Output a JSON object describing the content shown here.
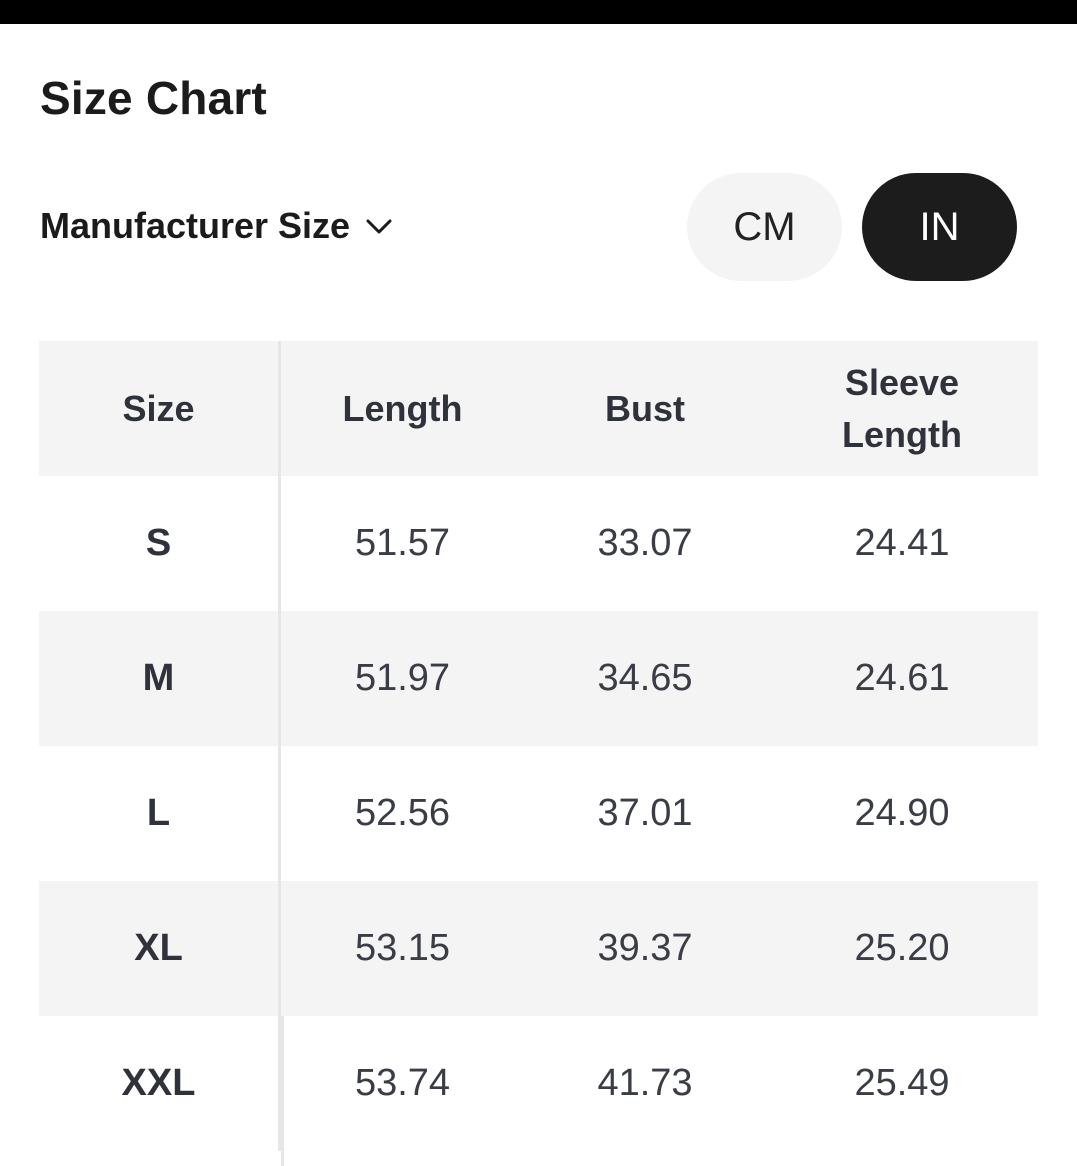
{
  "title": "Size Chart",
  "size_selector": {
    "label": "Manufacturer Size",
    "icon": "chevron-down-icon"
  },
  "units": {
    "cm": "CM",
    "in": "IN",
    "selected": "IN"
  },
  "colors": {
    "selected_bg": "#1c1c1c",
    "unselected_bg": "#f4f4f4",
    "stripe": "#f4f4f4"
  },
  "table": {
    "headers": [
      "Size",
      "Length",
      "Bust",
      "Sleeve Length"
    ],
    "rows": [
      [
        "S",
        "51.57",
        "33.07",
        "24.41"
      ],
      [
        "M",
        "51.97",
        "34.65",
        "24.61"
      ],
      [
        "L",
        "52.56",
        "37.01",
        "24.90"
      ],
      [
        "XL",
        "53.15",
        "39.37",
        "25.20"
      ],
      [
        "XXL",
        "53.74",
        "41.73",
        "25.49"
      ]
    ]
  }
}
